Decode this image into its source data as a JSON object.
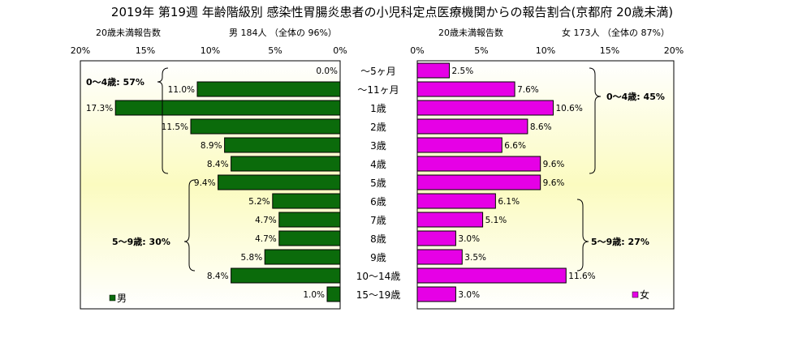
{
  "chart_data": {
    "type": "bar",
    "title": "2019年 第19週 年齢階級別 感染性胃腸炎患者の小児科定点医療機関からの報告割合(京都府 20歳未満)",
    "categories": [
      "～5ヶ月",
      "～11ヶ月",
      "1歳",
      "2歳",
      "3歳",
      "4歳",
      "5歳",
      "6歳",
      "7歳",
      "8歳",
      "9歳",
      "10～14歳",
      "15～19歳"
    ],
    "xlim": [
      0,
      20
    ],
    "ticks": [
      "0%",
      "5%",
      "10%",
      "15%",
      "20%"
    ],
    "grid": false,
    "male": {
      "subtitle_left": "20歳未満報告数",
      "subtitle_right": "男 184人 （全体の 96%）",
      "legend": "男",
      "color": "#0b6b0b",
      "values": [
        0.0,
        11.0,
        17.3,
        11.5,
        8.9,
        8.4,
        9.4,
        5.2,
        4.7,
        4.7,
        5.8,
        8.4,
        1.0
      ],
      "labels": [
        "0.0%",
        "11.0%",
        "17.3%",
        "11.5%",
        "8.9%",
        "8.4%",
        "9.4%",
        "5.2%",
        "4.7%",
        "4.7%",
        "5.8%",
        "8.4%",
        "1.0%"
      ],
      "group_0_4": "0～4歳: 57%",
      "group_5_9": "5～9歳: 30%"
    },
    "female": {
      "subtitle_left": "20歳未満報告数",
      "subtitle_right": "女 173人 （全体の 87%）",
      "legend": "女",
      "color": "#e600e6",
      "values": [
        2.5,
        7.6,
        10.6,
        8.6,
        6.6,
        9.6,
        9.6,
        6.1,
        5.1,
        3.0,
        3.5,
        11.6,
        3.0
      ],
      "labels": [
        "2.5%",
        "7.6%",
        "10.6%",
        "8.6%",
        "6.6%",
        "9.6%",
        "9.6%",
        "6.1%",
        "5.1%",
        "3.0%",
        "3.5%",
        "11.6%",
        "3.0%"
      ],
      "group_0_4": "0～4歳: 45%",
      "group_5_9": "5～9歳: 27%"
    }
  }
}
